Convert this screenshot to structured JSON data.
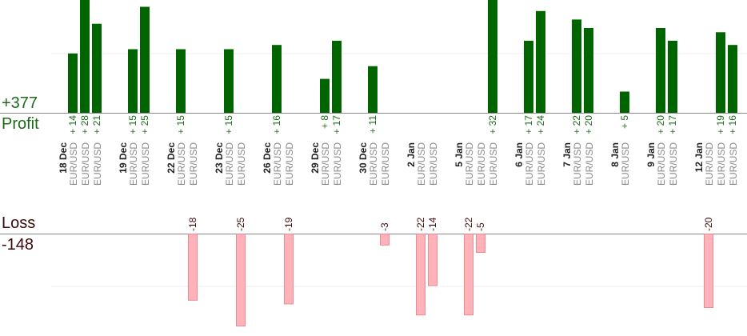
{
  "summary": {
    "profit_total": "+377",
    "profit_label": "Profit",
    "loss_label": "Loss",
    "loss_total": "-148"
  },
  "colors": {
    "profit_bar": "#006400",
    "profit_text": "#1b6b1b",
    "loss_bar": "#ffb3b8",
    "loss_bar_border": "#e88a90",
    "axis": "#8a8a8a",
    "grid": "#ececec",
    "date_text": "#222222",
    "instrument_text": "#8a8a8a",
    "loss_text": "#3a0a0a"
  },
  "chart_data": {
    "type": "bar",
    "profit_ylim": [
      0,
      28
    ],
    "loss_ylim": [
      -25,
      0
    ],
    "groups": [
      {
        "date": "18 Dec",
        "trades": [
          {
            "instrument": "EUR/USD",
            "value": 14
          },
          {
            "instrument": "EUR/USD",
            "value": 28
          },
          {
            "instrument": "EUR/USD",
            "value": 21
          }
        ]
      },
      {
        "date": "19 Dec",
        "trades": [
          {
            "instrument": "EUR/USD",
            "value": 15
          },
          {
            "instrument": "EUR/USD",
            "value": 25
          }
        ]
      },
      {
        "date": "22 Dec",
        "trades": [
          {
            "instrument": "EUR/USD",
            "value": 15
          },
          {
            "instrument": "EUR/USD",
            "value": -18
          }
        ]
      },
      {
        "date": "23 Dec",
        "trades": [
          {
            "instrument": "EUR/USD",
            "value": 15
          },
          {
            "instrument": "EUR/USD",
            "value": -25
          }
        ]
      },
      {
        "date": "26 Dec",
        "trades": [
          {
            "instrument": "EUR/USD",
            "value": 16
          },
          {
            "instrument": "EUR/USD",
            "value": -19
          }
        ]
      },
      {
        "date": "29 Dec",
        "trades": [
          {
            "instrument": "EUR/USD",
            "value": 8
          },
          {
            "instrument": "EUR/USD",
            "value": 17
          }
        ]
      },
      {
        "date": "30 Dec",
        "trades": [
          {
            "instrument": "EUR/USD",
            "value": 11
          },
          {
            "instrument": "EUR/USD",
            "value": -3
          }
        ]
      },
      {
        "date": "2 Jan",
        "trades": [
          {
            "instrument": "EUR/USD",
            "value": -22
          },
          {
            "instrument": "EUR/USD",
            "value": -14
          }
        ]
      },
      {
        "date": "5 Jan",
        "trades": [
          {
            "instrument": "EUR/USD",
            "value": -22
          },
          {
            "instrument": "EUR/USD",
            "value": -5
          },
          {
            "instrument": "EUR/USD",
            "value": 32
          }
        ]
      },
      {
        "date": "6 Jan",
        "trades": [
          {
            "instrument": "EUR/USD",
            "value": 17
          },
          {
            "instrument": "EUR/USD",
            "value": 24
          }
        ]
      },
      {
        "date": "7 Jan",
        "trades": [
          {
            "instrument": "EUR/USD",
            "value": 22
          },
          {
            "instrument": "EUR/USD",
            "value": 20
          }
        ]
      },
      {
        "date": "8 Jan",
        "trades": [
          {
            "instrument": "EUR/USD",
            "value": 5
          }
        ]
      },
      {
        "date": "9 Jan",
        "trades": [
          {
            "instrument": "EUR/USD",
            "value": 20
          },
          {
            "instrument": "EUR/USD",
            "value": 17
          }
        ]
      },
      {
        "date": "12 Jan",
        "trades": [
          {
            "instrument": "EUR/USD",
            "value": -20
          },
          {
            "instrument": "EUR/USD",
            "value": 19
          },
          {
            "instrument": "EUR/USD",
            "value": 16
          }
        ]
      }
    ]
  }
}
